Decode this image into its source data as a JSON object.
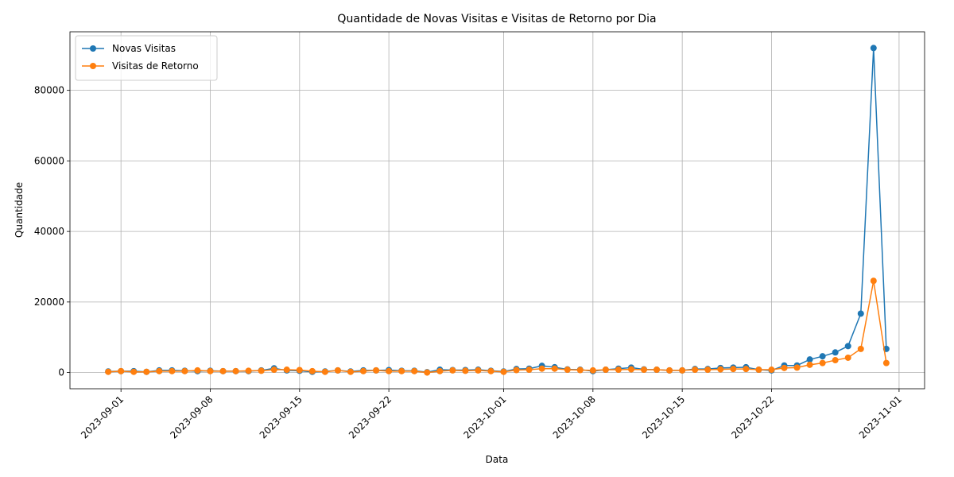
{
  "chart_data": {
    "type": "line",
    "title": "Quantidade de Novas Visitas e Visitas de Retorno por Dia",
    "xlabel": "Data",
    "ylabel": "Quantidade",
    "x": [
      "2023-08-31",
      "2023-09-01",
      "2023-09-02",
      "2023-09-03",
      "2023-09-04",
      "2023-09-05",
      "2023-09-06",
      "2023-09-07",
      "2023-09-08",
      "2023-09-09",
      "2023-09-10",
      "2023-09-11",
      "2023-09-12",
      "2023-09-13",
      "2023-09-14",
      "2023-09-15",
      "2023-09-16",
      "2023-09-17",
      "2023-09-18",
      "2023-09-19",
      "2023-09-20",
      "2023-09-21",
      "2023-09-22",
      "2023-09-23",
      "2023-09-24",
      "2023-09-25",
      "2023-09-26",
      "2023-09-27",
      "2023-09-28",
      "2023-09-29",
      "2023-09-30",
      "2023-10-01",
      "2023-10-02",
      "2023-10-03",
      "2023-10-04",
      "2023-10-05",
      "2023-10-06",
      "2023-10-07",
      "2023-10-08",
      "2023-10-09",
      "2023-10-10",
      "2023-10-11",
      "2023-10-12",
      "2023-10-13",
      "2023-10-14",
      "2023-10-15",
      "2023-10-16",
      "2023-10-17",
      "2023-10-18",
      "2023-10-19",
      "2023-10-20",
      "2023-10-21",
      "2023-10-22",
      "2023-10-23",
      "2023-10-24",
      "2023-10-25",
      "2023-10-26",
      "2023-10-27",
      "2023-10-28",
      "2023-10-29",
      "2023-10-30",
      "2023-10-31"
    ],
    "series": [
      {
        "name": "Novas Visitas",
        "color": "#1f77b4",
        "values": [
          300,
          400,
          400,
          200,
          600,
          600,
          500,
          400,
          500,
          400,
          400,
          400,
          600,
          1200,
          600,
          500,
          200,
          300,
          600,
          300,
          600,
          600,
          700,
          500,
          500,
          100,
          800,
          700,
          700,
          800,
          500,
          300,
          1000,
          1100,
          1900,
          1500,
          900,
          800,
          400,
          800,
          1100,
          1400,
          900,
          800,
          600,
          600,
          1000,
          1000,
          1300,
          1400,
          1500,
          800,
          600,
          2000,
          2000,
          3700,
          4600,
          5700,
          7500,
          16700,
          92000,
          6700
        ]
      },
      {
        "name": "Visitas de Retorno",
        "color": "#ff7f0e",
        "values": [
          200,
          400,
          200,
          200,
          400,
          400,
          400,
          600,
          400,
          400,
          400,
          500,
          500,
          800,
          800,
          700,
          400,
          200,
          600,
          200,
          400,
          600,
          400,
          400,
          400,
          0,
          400,
          600,
          500,
          600,
          400,
          200,
          700,
          800,
          1100,
          1100,
          800,
          700,
          600,
          800,
          800,
          900,
          800,
          800,
          600,
          600,
          800,
          800,
          900,
          1000,
          1000,
          800,
          800,
          1300,
          1400,
          2200,
          2700,
          3500,
          4200,
          6700,
          26000,
          2700
        ]
      }
    ],
    "xlim": [
      "2023-08-28",
      "2023-11-03"
    ],
    "xticks": [
      "2023-09-01",
      "2023-09-08",
      "2023-09-15",
      "2023-09-22",
      "2023-10-01",
      "2023-10-08",
      "2023-10-15",
      "2023-10-22",
      "2023-11-01"
    ],
    "ylim": [
      -4600,
      96600
    ],
    "yticks": [
      0,
      20000,
      40000,
      60000,
      80000
    ],
    "grid": true,
    "legend": "upper left"
  }
}
